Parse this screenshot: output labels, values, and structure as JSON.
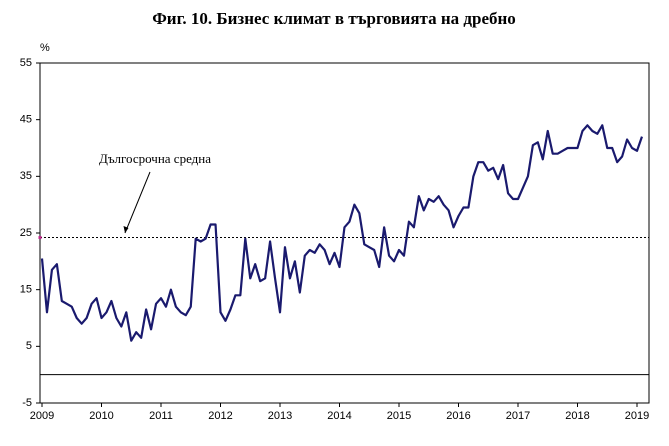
{
  "chart_data": {
    "type": "line",
    "title": "Фиг. 10. Бизнес климат в търговията на дребно",
    "y_label": "%",
    "annotation": "Дългосрочна средна",
    "average": 24.2,
    "categories": [
      "2009",
      null,
      null,
      null,
      null,
      null,
      null,
      null,
      null,
      null,
      null,
      null,
      "2010",
      null,
      null,
      null,
      null,
      null,
      null,
      null,
      null,
      null,
      null,
      null,
      "2011",
      null,
      null,
      null,
      null,
      null,
      null,
      null,
      null,
      null,
      null,
      null,
      "2012",
      null,
      null,
      null,
      null,
      null,
      null,
      null,
      null,
      null,
      null,
      null,
      "2013",
      null,
      null,
      null,
      null,
      null,
      null,
      null,
      null,
      null,
      null,
      null,
      "2014",
      null,
      null,
      null,
      null,
      null,
      null,
      null,
      null,
      null,
      null,
      null,
      "2015",
      null,
      null,
      null,
      null,
      null,
      null,
      null,
      null,
      null,
      null,
      null,
      "2016",
      null,
      null,
      null,
      null,
      null,
      null,
      null,
      null,
      null,
      null,
      null,
      "2017",
      null,
      null,
      null,
      null,
      null,
      null,
      null,
      null,
      null,
      null,
      null,
      "2018",
      null,
      null,
      null,
      null,
      null,
      null,
      null,
      null,
      null,
      null,
      null,
      "2019",
      null
    ],
    "values": [
      20.5,
      11,
      18.5,
      19.5,
      13,
      12.5,
      12,
      10,
      9,
      10,
      12.5,
      13.5,
      10,
      11,
      13,
      10,
      8.5,
      11,
      6,
      7.5,
      6.5,
      11.5,
      8,
      12.5,
      13.5,
      12,
      15,
      12,
      11,
      10.5,
      12,
      24,
      23.5,
      24,
      26.5,
      26.5,
      11,
      9.5,
      11.5,
      14,
      14,
      24,
      17,
      19.5,
      16.5,
      17,
      23.5,
      17,
      11,
      22.5,
      17,
      20,
      14.5,
      21,
      22,
      21.5,
      23,
      22,
      19.5,
      21.5,
      19,
      26,
      27,
      30,
      28.5,
      23,
      22.5,
      22,
      19,
      26,
      21,
      20,
      22,
      21,
      27,
      26,
      31.5,
      29,
      31,
      30.5,
      31.5,
      30,
      29,
      26,
      28,
      29.5,
      29.5,
      35,
      37.5,
      37.5,
      36,
      36.5,
      34.5,
      37,
      32,
      31,
      31,
      33,
      35,
      40.5,
      41,
      38,
      43,
      39,
      39,
      39.5,
      40,
      40,
      40,
      43,
      44,
      43,
      42.5,
      44,
      40,
      40,
      37.5,
      38.5,
      41.5,
      40,
      39.5,
      42
    ],
    "color": "#1a1a6e",
    "ylim": [
      -5,
      55
    ],
    "yticks": [
      -5,
      5,
      15,
      25,
      35,
      45,
      55
    ]
  }
}
